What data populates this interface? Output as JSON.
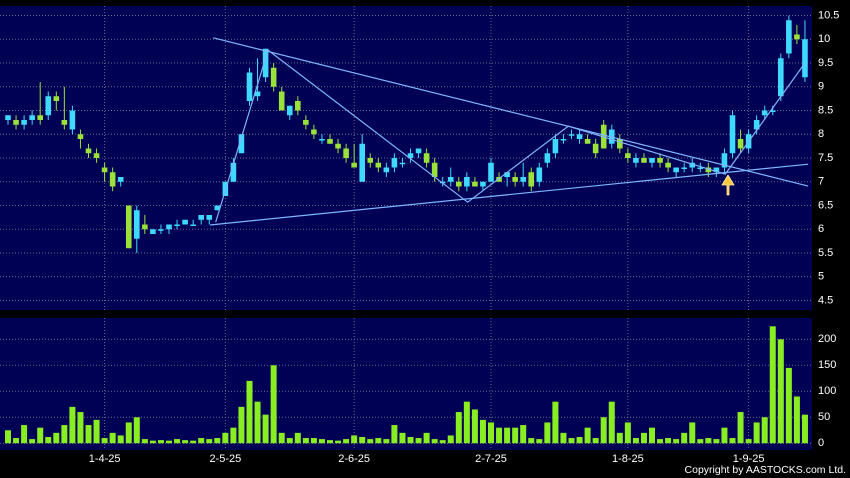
{
  "chart_data": {
    "type": "candlestick",
    "categories": [
      null,
      null,
      null,
      null,
      null,
      null,
      null,
      null,
      null,
      null,
      null,
      null,
      "1-4-25",
      null,
      null,
      null,
      null,
      null,
      null,
      null,
      null,
      null,
      null,
      null,
      null,
      null,
      null,
      "2-5-25",
      null,
      null,
      null,
      null,
      null,
      null,
      null,
      null,
      null,
      null,
      null,
      null,
      null,
      null,
      null,
      "2-6-25",
      null,
      null,
      null,
      null,
      null,
      null,
      null,
      null,
      null,
      null,
      null,
      null,
      null,
      null,
      null,
      null,
      "2-7-25",
      null,
      null,
      null,
      null,
      null,
      null,
      null,
      null,
      null,
      null,
      null,
      null,
      null,
      null,
      null,
      null,
      "1-8-25",
      null,
      null,
      null,
      null,
      null,
      null,
      null,
      null,
      null,
      null,
      null,
      null,
      null,
      null,
      "1-9-25",
      null,
      null,
      null,
      null,
      null,
      null,
      null
    ],
    "open": [
      8.3,
      8.3,
      8.2,
      8.3,
      8.4,
      8.4,
      8.8,
      8.3,
      8.1,
      8.0,
      7.7,
      7.6,
      7.3,
      7.2,
      7.0,
      6.5,
      5.8,
      6.1,
      5.9,
      6.0,
      6.0,
      6.1,
      6.1,
      6.1,
      6.2,
      6.2,
      6.4,
      6.7,
      7.0,
      7.6,
      8.7,
      8.8,
      9.2,
      9.4,
      8.9,
      8.4,
      8.7,
      8.3,
      8.1,
      7.9,
      7.9,
      7.8,
      7.7,
      7.4,
      7.0,
      7.5,
      7.4,
      7.2,
      7.3,
      7.4,
      7.5,
      7.6,
      7.6,
      7.4,
      7.0,
      7.0,
      7.0,
      6.9,
      7.0,
      6.9,
      7.0,
      7.1,
      7.1,
      7.1,
      7.0,
      7.2,
      7.0,
      7.4,
      7.6,
      7.9,
      8.0,
      7.9,
      7.9,
      7.8,
      8.2,
      7.8,
      7.9,
      7.6,
      7.4,
      7.5,
      7.4,
      7.5,
      7.4,
      7.2,
      7.3,
      7.3,
      7.3,
      7.3,
      7.2,
      7.3,
      7.6,
      7.9,
      7.7,
      8.1,
      8.4,
      8.5,
      8.8,
      9.7,
      10.1,
      9.2
    ],
    "high": [
      8.4,
      8.4,
      8.4,
      8.5,
      9.1,
      8.9,
      8.9,
      9.0,
      8.6,
      8.1,
      7.8,
      7.7,
      7.4,
      7.3,
      7.1,
      6.5,
      6.5,
      6.3,
      6.0,
      6.1,
      6.1,
      6.2,
      6.2,
      6.2,
      6.3,
      6.3,
      6.5,
      7.0,
      7.5,
      8.0,
      9.4,
      9.6,
      9.8,
      9.5,
      9.0,
      8.6,
      8.8,
      8.4,
      8.2,
      8.0,
      8.0,
      7.9,
      7.8,
      7.8,
      8.0,
      7.6,
      7.5,
      7.4,
      7.6,
      7.5,
      7.7,
      7.7,
      7.7,
      7.5,
      7.1,
      7.3,
      7.1,
      7.2,
      7.1,
      7.0,
      7.5,
      7.2,
      7.2,
      7.2,
      7.4,
      7.3,
      7.4,
      7.7,
      8.0,
      8.0,
      8.1,
      8.1,
      8.0,
      7.9,
      8.3,
      8.2,
      8.0,
      7.7,
      7.6,
      7.6,
      7.5,
      7.6,
      7.5,
      7.3,
      7.4,
      7.5,
      7.4,
      7.4,
      7.3,
      7.7,
      8.5,
      8.1,
      8.1,
      8.4,
      8.6,
      8.6,
      9.7,
      10.5,
      10.3,
      10.4
    ],
    "low": [
      8.2,
      8.1,
      8.1,
      8.2,
      8.2,
      8.3,
      8.5,
      8.1,
      8.0,
      7.7,
      7.5,
      7.4,
      7.0,
      6.8,
      6.9,
      5.6,
      5.5,
      5.9,
      5.9,
      5.9,
      5.9,
      6.0,
      6.1,
      6.1,
      6.1,
      6.1,
      6.4,
      6.7,
      7.0,
      7.6,
      8.6,
      8.7,
      9.1,
      8.9,
      8.5,
      8.3,
      8.4,
      8.1,
      7.9,
      7.8,
      7.8,
      7.6,
      7.4,
      7.3,
      7.0,
      7.3,
      7.2,
      7.1,
      7.2,
      7.3,
      7.4,
      7.5,
      7.3,
      7.0,
      6.9,
      6.9,
      6.8,
      6.8,
      6.9,
      6.8,
      7.0,
      7.0,
      6.9,
      6.9,
      6.9,
      6.8,
      6.9,
      7.3,
      7.5,
      7.8,
      7.9,
      7.8,
      7.8,
      7.5,
      7.7,
      7.7,
      7.6,
      7.4,
      7.3,
      7.4,
      7.3,
      7.3,
      7.2,
      7.1,
      7.2,
      7.2,
      7.2,
      7.1,
      7.1,
      7.2,
      7.5,
      7.6,
      7.6,
      8.0,
      8.3,
      8.4,
      8.7,
      9.6,
      9.9,
      9.1
    ],
    "close": [
      8.4,
      8.2,
      8.3,
      8.4,
      8.3,
      8.8,
      8.7,
      8.2,
      8.5,
      7.9,
      7.6,
      7.5,
      7.2,
      6.9,
      7.1,
      5.6,
      6.4,
      6.0,
      6.0,
      6.0,
      6.1,
      6.1,
      6.2,
      6.1,
      6.3,
      6.3,
      6.5,
      7.0,
      7.4,
      8.0,
      9.3,
      8.9,
      9.8,
      9.0,
      8.5,
      8.6,
      8.5,
      8.2,
      8.0,
      7.9,
      7.8,
      7.7,
      7.5,
      7.3,
      7.8,
      7.4,
      7.3,
      7.3,
      7.5,
      7.4,
      7.6,
      7.7,
      7.4,
      7.1,
      7.0,
      7.1,
      6.9,
      7.1,
      6.9,
      7.0,
      7.4,
      7.0,
      7.2,
      7.0,
      7.1,
      6.9,
      7.3,
      7.6,
      7.9,
      7.9,
      8.0,
      8.0,
      7.8,
      7.6,
      7.7,
      8.1,
      7.7,
      7.5,
      7.5,
      7.4,
      7.5,
      7.4,
      7.3,
      7.3,
      7.3,
      7.4,
      7.3,
      7.2,
      7.3,
      7.6,
      8.4,
      7.7,
      8.0,
      8.3,
      8.5,
      8.5,
      9.6,
      10.4,
      10.0,
      10.0
    ],
    "volume": [
      25,
      10,
      35,
      8,
      30,
      12,
      20,
      35,
      70,
      60,
      35,
      45,
      10,
      20,
      15,
      40,
      50,
      8,
      5,
      6,
      5,
      8,
      6,
      5,
      10,
      8,
      10,
      20,
      30,
      70,
      120,
      80,
      55,
      150,
      20,
      10,
      20,
      10,
      10,
      8,
      6,
      5,
      8,
      15,
      12,
      8,
      10,
      8,
      35,
      20,
      12,
      10,
      20,
      8,
      6,
      15,
      60,
      80,
      65,
      45,
      40,
      30,
      30,
      30,
      35,
      10,
      8,
      40,
      80,
      20,
      10,
      12,
      30,
      10,
      50,
      80,
      20,
      40,
      10,
      20,
      30,
      8,
      10,
      8,
      20,
      40,
      8,
      10,
      8,
      30,
      10,
      60,
      8,
      40,
      50,
      225,
      200,
      145,
      90,
      55
    ],
    "up_color": "#3fd9ff",
    "down_color": "#9ae23a",
    "volume_color": "#88ee22",
    "trend_color": "#7fb6ff",
    "ylim": [
      4.3,
      10.7
    ],
    "yticks": [
      4.5,
      5,
      5.5,
      6,
      6.5,
      7,
      7.5,
      8,
      8.5,
      9,
      9.5,
      10,
      10.5
    ],
    "y2lim": [
      -13,
      241
    ],
    "y2ticks": [
      0,
      50,
      100,
      150,
      200
    ],
    "grid": true,
    "lines": [
      {
        "x": [
          25.5,
          99.4
        ],
        "y": [
          10.03,
          6.91
        ]
      },
      {
        "x": [
          25.1,
          99.4
        ],
        "y": [
          6.09,
          7.37
        ]
      },
      {
        "x": [
          25.8,
          32.3,
          57.1,
          69.6,
          89.1,
          99
        ],
        "y": [
          6.15,
          9.77,
          6.57,
          8.17,
          7.16,
          9.5
        ]
      }
    ],
    "copyright": "Copyright by AASTOCKS.com Ltd."
  }
}
